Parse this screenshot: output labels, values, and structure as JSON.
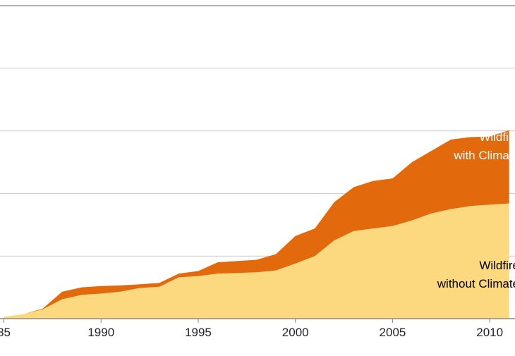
{
  "chart_data": {
    "type": "area",
    "stacked": true,
    "title": "",
    "xlabel": "",
    "ylabel": "",
    "xlim": [
      1984.8,
      2011.3
    ],
    "ylim": [
      0,
      5
    ],
    "grid": "horizontal",
    "legend": "none",
    "x_ticks": [
      "85",
      "1990",
      "1995",
      "2000",
      "2005",
      "2010"
    ],
    "x": [
      1985,
      1986,
      1987,
      1988,
      1989,
      1990,
      1991,
      1992,
      1993,
      1994,
      1995,
      1996,
      1997,
      1998,
      1999,
      2000,
      2001,
      2002,
      2003,
      2004,
      2005,
      2006,
      2007,
      2008,
      2009,
      2010,
      2011
    ],
    "series": [
      {
        "id": "without",
        "color": "#fcd87e",
        "values": [
          0.03,
          0.07,
          0.15,
          0.31,
          0.38,
          0.4,
          0.43,
          0.49,
          0.51,
          0.66,
          0.68,
          0.72,
          0.73,
          0.74,
          0.77,
          0.88,
          1.0,
          1.25,
          1.4,
          1.44,
          1.48,
          1.57,
          1.68,
          1.75,
          1.8,
          1.82,
          1.84
        ]
      },
      {
        "id": "with",
        "color": "#e36a0c",
        "values": [
          0.0,
          0.0,
          0.01,
          0.12,
          0.12,
          0.12,
          0.1,
          0.06,
          0.06,
          0.06,
          0.08,
          0.18,
          0.19,
          0.2,
          0.26,
          0.44,
          0.44,
          0.61,
          0.7,
          0.76,
          0.76,
          0.93,
          1.0,
          1.11,
          1.1,
          1.09,
          1.17
        ]
      }
    ],
    "annotations": [
      {
        "id": "with",
        "lines": [
          "Wildfire",
          "with Climate"
        ],
        "color": "#ffffff"
      },
      {
        "id": "without",
        "lines": [
          "Wildfire",
          "without Climate"
        ],
        "color": "#000000"
      }
    ]
  }
}
